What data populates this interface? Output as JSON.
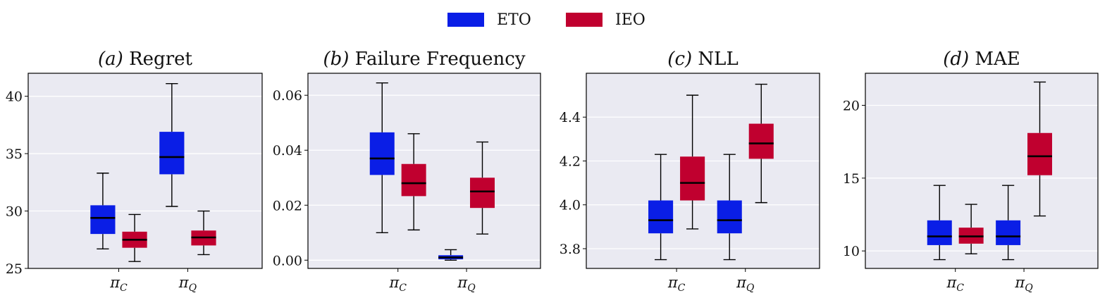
{
  "legend": {
    "items": [
      {
        "label": "ETO",
        "color": "#0a1ee6"
      },
      {
        "label": "IEO",
        "color": "#c0002f"
      }
    ]
  },
  "chart_data": [
    {
      "type": "box",
      "title_italic": "(a)",
      "title": "Regret",
      "categories": [
        "π_C",
        "π_Q"
      ],
      "ylim": [
        25,
        42
      ],
      "yticks": [
        25,
        30,
        35,
        40
      ],
      "yticklabels": [
        "25",
        "30",
        "35",
        "40"
      ],
      "grid": true,
      "series": [
        {
          "name": "ETO",
          "boxes": [
            {
              "whislo": 26.7,
              "q1": 28.0,
              "med": 29.4,
              "q3": 30.5,
              "whishi": 33.3
            },
            {
              "whislo": 30.4,
              "q1": 33.2,
              "med": 34.7,
              "q3": 36.9,
              "whishi": 41.1
            }
          ]
        },
        {
          "name": "IEO",
          "boxes": [
            {
              "whislo": 25.6,
              "q1": 26.8,
              "med": 27.5,
              "q3": 28.2,
              "whishi": 29.7
            },
            {
              "whislo": 26.2,
              "q1": 27.0,
              "med": 27.7,
              "q3": 28.3,
              "whishi": 30.0
            }
          ]
        }
      ]
    },
    {
      "type": "box",
      "title_italic": "(b)",
      "title": "Failure Frequency",
      "categories": [
        "π_C",
        "π_Q"
      ],
      "ylim": [
        -0.003,
        0.068
      ],
      "yticks": [
        0,
        0.02,
        0.04,
        0.06
      ],
      "yticklabels": [
        "0.00",
        "0.02",
        "0.04",
        "0.06"
      ],
      "grid": true,
      "series": [
        {
          "name": "ETO",
          "boxes": [
            {
              "whislo": 0.01,
              "q1": 0.031,
              "med": 0.037,
              "q3": 0.0465,
              "whishi": 0.0645
            },
            {
              "whislo": 0.0,
              "q1": 0.0003,
              "med": 0.001,
              "q3": 0.0018,
              "whishi": 0.0038
            }
          ]
        },
        {
          "name": "IEO",
          "boxes": [
            {
              "whislo": 0.011,
              "q1": 0.0233,
              "med": 0.028,
              "q3": 0.035,
              "whishi": 0.046
            },
            {
              "whislo": 0.0095,
              "q1": 0.019,
              "med": 0.025,
              "q3": 0.03,
              "whishi": 0.043
            }
          ]
        }
      ]
    },
    {
      "type": "box",
      "title_italic": "(c)",
      "title": "NLL",
      "categories": [
        "π_C",
        "π_Q"
      ],
      "ylim": [
        3.71,
        4.6
      ],
      "yticks": [
        3.8,
        4.0,
        4.2,
        4.4
      ],
      "yticklabels": [
        "3.8",
        "4.0",
        "4.2",
        "4.4"
      ],
      "grid": true,
      "series": [
        {
          "name": "ETO",
          "boxes": [
            {
              "whislo": 3.75,
              "q1": 3.87,
              "med": 3.93,
              "q3": 4.02,
              "whishi": 4.23
            },
            {
              "whislo": 3.75,
              "q1": 3.87,
              "med": 3.93,
              "q3": 4.02,
              "whishi": 4.23
            }
          ]
        },
        {
          "name": "IEO",
          "boxes": [
            {
              "whislo": 3.89,
              "q1": 4.02,
              "med": 4.1,
              "q3": 4.22,
              "whishi": 4.5
            },
            {
              "whislo": 4.01,
              "q1": 4.21,
              "med": 4.28,
              "q3": 4.37,
              "whishi": 4.55
            }
          ]
        }
      ]
    },
    {
      "type": "box",
      "title_italic": "(d)",
      "title": "MAE",
      "categories": [
        "π_C",
        "π_Q"
      ],
      "ylim": [
        8.8,
        22.2
      ],
      "yticks": [
        10,
        15,
        20
      ],
      "yticklabels": [
        "10",
        "15",
        "20"
      ],
      "grid": true,
      "series": [
        {
          "name": "ETO",
          "boxes": [
            {
              "whislo": 9.4,
              "q1": 10.4,
              "med": 11.0,
              "q3": 12.1,
              "whishi": 14.5
            },
            {
              "whislo": 9.4,
              "q1": 10.4,
              "med": 11.0,
              "q3": 12.1,
              "whishi": 14.5
            }
          ]
        },
        {
          "name": "IEO",
          "boxes": [
            {
              "whislo": 9.8,
              "q1": 10.5,
              "med": 11.0,
              "q3": 11.6,
              "whishi": 13.2
            },
            {
              "whislo": 12.4,
              "q1": 15.2,
              "med": 16.5,
              "q3": 18.1,
              "whishi": 21.6
            }
          ]
        }
      ]
    }
  ]
}
